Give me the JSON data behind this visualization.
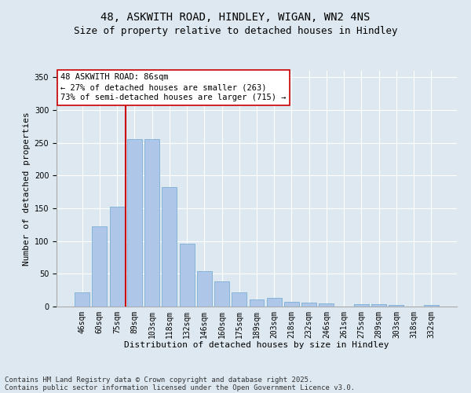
{
  "title1": "48, ASKWITH ROAD, HINDLEY, WIGAN, WN2 4NS",
  "title2": "Size of property relative to detached houses in Hindley",
  "xlabel": "Distribution of detached houses by size in Hindley",
  "ylabel": "Number of detached properties",
  "categories": [
    "46sqm",
    "60sqm",
    "75sqm",
    "89sqm",
    "103sqm",
    "118sqm",
    "132sqm",
    "146sqm",
    "160sqm",
    "175sqm",
    "189sqm",
    "203sqm",
    "218sqm",
    "232sqm",
    "246sqm",
    "261sqm",
    "275sqm",
    "289sqm",
    "303sqm",
    "318sqm",
    "332sqm"
  ],
  "values": [
    22,
    122,
    153,
    256,
    256,
    183,
    96,
    54,
    39,
    22,
    11,
    13,
    7,
    6,
    5,
    0,
    4,
    4,
    3,
    0,
    2
  ],
  "bar_color": "#aec6e8",
  "bar_edgecolor": "#7aafd4",
  "vline_x": 2.5,
  "vline_color": "#cc0000",
  "annotation_text": "48 ASKWITH ROAD: 86sqm\n← 27% of detached houses are smaller (263)\n73% of semi-detached houses are larger (715) →",
  "ylim": [
    0,
    360
  ],
  "yticks": [
    0,
    50,
    100,
    150,
    200,
    250,
    300,
    350
  ],
  "bg_color": "#dde8f0",
  "plot_bg_color": "#dde8f0",
  "footer_line1": "Contains HM Land Registry data © Crown copyright and database right 2025.",
  "footer_line2": "Contains public sector information licensed under the Open Government Licence v3.0.",
  "title_fontsize": 10,
  "subtitle_fontsize": 9,
  "axis_label_fontsize": 8,
  "tick_fontsize": 7,
  "annotation_fontsize": 7.5,
  "footer_fontsize": 6.5
}
